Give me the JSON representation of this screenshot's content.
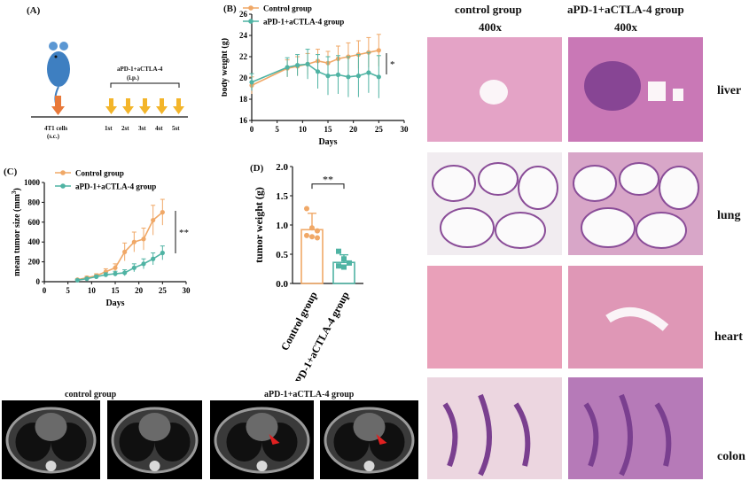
{
  "panelA": {
    "label": "(A)",
    "treatment": "aPD-1+aCTLA-4",
    "route": "(i.p.)",
    "cells": "4T1 cells",
    "cells_route": "(s.c.)",
    "doses": [
      "1st",
      "2st",
      "3st",
      "4st",
      "5st"
    ]
  },
  "panelB": {
    "label": "(B)",
    "legend": [
      "Control group",
      "aPD-1+aCTLA-4 group"
    ],
    "ylabel": "body weight (g)",
    "xlabel": "Days",
    "sig": "*"
  },
  "panelC": {
    "label": "(C)",
    "legend": [
      "Control group",
      "aPD-1+aCTLA-4 group"
    ],
    "ylabel": "mean tumor size (mm",
    "ylabel_sup": "3",
    "ylabel_end": ")",
    "xlabel": "Days",
    "sig": "**"
  },
  "panelD": {
    "label": "(D)",
    "ylabel": "tumor weight (g)",
    "sig": "**",
    "categories": [
      "Control group",
      "aPD-1+aCTLA-4 group"
    ]
  },
  "histology": {
    "col_titles": [
      "control group",
      "aPD-1+aCTLA-4 group"
    ],
    "magnification": [
      "400x",
      "400x"
    ],
    "rows": [
      "liver",
      "lung",
      "heart",
      "colon"
    ]
  },
  "ct": {
    "titles": [
      "control group",
      "aPD-1+aCTLA-4 group"
    ]
  },
  "colors": {
    "control": "#f0a867",
    "treat": "#4fb3a3",
    "he_pink": "#d98fb8",
    "he_purple": "#7a3f8f"
  },
  "chart_data": [
    {
      "type": "line",
      "title": "",
      "xlabel": "Days",
      "ylabel": "body weight (g)",
      "xlim": [
        0,
        30
      ],
      "ylim": [
        16,
        26
      ],
      "xticks": [
        0,
        5,
        10,
        15,
        20,
        25,
        30
      ],
      "yticks": [
        16,
        18,
        20,
        22,
        24,
        26
      ],
      "series": [
        {
          "name": "Control group",
          "x": [
            0,
            7,
            9,
            11,
            13,
            15,
            17,
            19,
            21,
            23,
            25
          ],
          "y": [
            19.3,
            20.9,
            21.1,
            21.3,
            21.6,
            21.4,
            21.8,
            22.0,
            22.2,
            22.4,
            22.6
          ],
          "err": [
            0.8,
            0.8,
            0.9,
            1.0,
            1.1,
            1.1,
            1.2,
            1.3,
            1.3,
            1.4,
            1.5
          ]
        },
        {
          "name": "aPD-1+aCTLA-4 group",
          "x": [
            0,
            7,
            9,
            11,
            13,
            15,
            17,
            19,
            21,
            23,
            25
          ],
          "y": [
            19.6,
            21.0,
            21.2,
            21.3,
            20.6,
            20.2,
            20.3,
            20.1,
            20.2,
            20.5,
            20.1
          ],
          "err": [
            0.8,
            0.9,
            1.0,
            1.4,
            1.6,
            1.8,
            1.8,
            1.9,
            2.0,
            1.9,
            2.0
          ]
        }
      ]
    },
    {
      "type": "line",
      "title": "",
      "xlabel": "Days",
      "ylabel": "mean tumor size (mm3)",
      "xlim": [
        0,
        30
      ],
      "ylim": [
        0,
        1000
      ],
      "xticks": [
        0,
        5,
        10,
        15,
        20,
        25,
        30
      ],
      "yticks": [
        0,
        200,
        400,
        600,
        800,
        1000
      ],
      "series": [
        {
          "name": "Control group",
          "x": [
            7,
            9,
            11,
            13,
            15,
            17,
            19,
            21,
            23,
            25
          ],
          "y": [
            20,
            40,
            60,
            100,
            140,
            300,
            400,
            430,
            620,
            700
          ],
          "err": [
            10,
            15,
            20,
            30,
            40,
            90,
            100,
            110,
            150,
            130
          ]
        },
        {
          "name": "aPD-1+aCTLA-4 group",
          "x": [
            7,
            9,
            11,
            13,
            15,
            17,
            19,
            21,
            23,
            25
          ],
          "y": [
            15,
            30,
            50,
            70,
            80,
            90,
            140,
            180,
            230,
            290
          ],
          "err": [
            8,
            10,
            15,
            20,
            25,
            30,
            40,
            50,
            60,
            70
          ]
        }
      ]
    },
    {
      "type": "bar",
      "title": "",
      "xlabel": "",
      "ylabel": "tumor weight (g)",
      "ylim": [
        0,
        2.0
      ],
      "yticks": [
        0.0,
        0.5,
        1.0,
        1.5,
        2.0
      ],
      "categories": [
        "Control group",
        "aPD-1+aCTLA-4 group"
      ],
      "values": [
        0.92,
        0.36
      ],
      "errors": [
        0.28,
        0.13
      ],
      "points": [
        [
          1.28,
          0.95,
          0.9,
          0.82,
          0.8,
          0.78
        ],
        [
          0.55,
          0.42,
          0.35,
          0.3,
          0.28
        ]
      ]
    }
  ]
}
